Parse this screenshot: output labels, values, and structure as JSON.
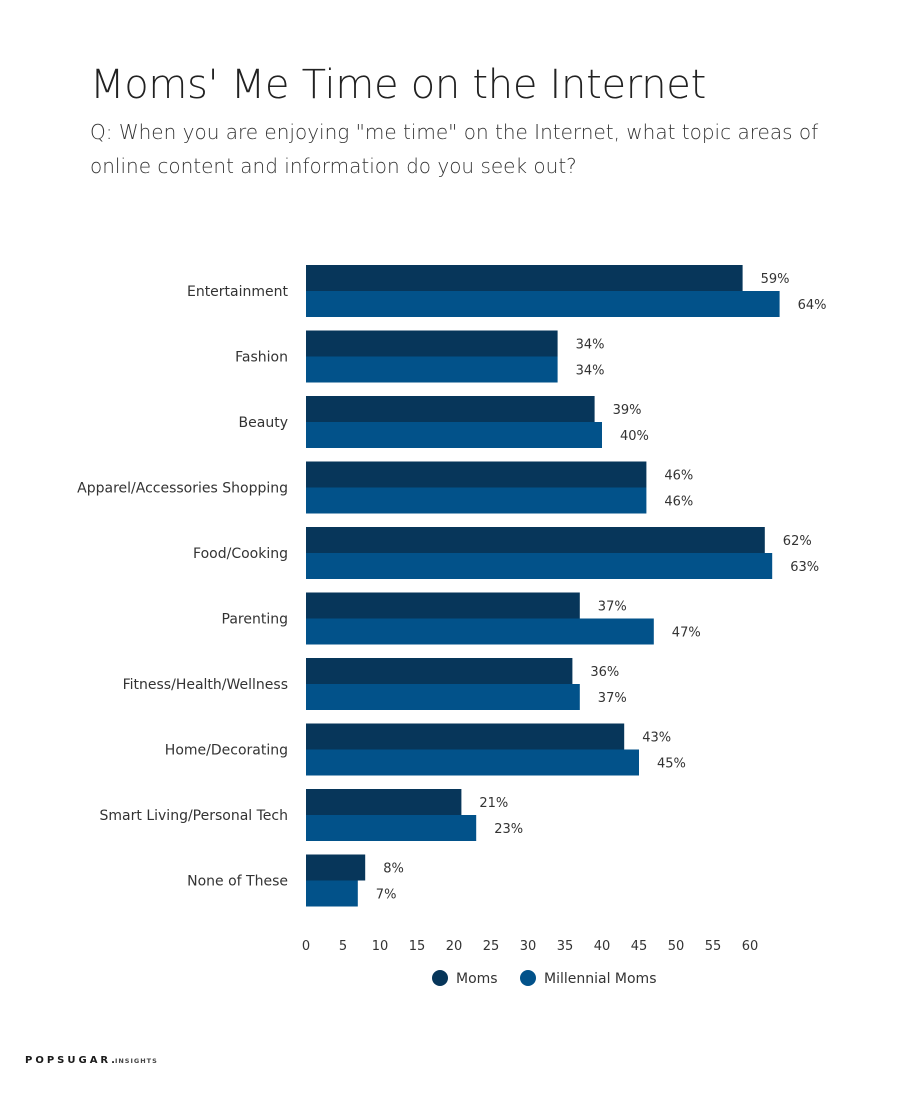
{
  "header": {
    "title": "Moms' Me Time on the Internet",
    "question": "Q: When you are enjoying \"me time\" on the Internet, what topic areas of online content and information do you seek out?"
  },
  "brand": {
    "name": "POPSUGAR",
    "dot": ".",
    "suffix": "INSIGHTS"
  },
  "chart_data": {
    "type": "bar",
    "orientation": "horizontal",
    "categories": [
      "Entertainment",
      "Fashion",
      "Beauty",
      "Apparel/Accessories Shopping",
      "Food/Cooking",
      "Parenting",
      "Fitness/Health/Wellness",
      "Home/Decorating",
      "Smart Living/Personal Tech",
      "None of These"
    ],
    "series": [
      {
        "name": "Moms",
        "color": "#07365a",
        "values": [
          59,
          34,
          39,
          46,
          62,
          37,
          36,
          43,
          21,
          8
        ]
      },
      {
        "name": "Millennial Moms",
        "color": "#02528a",
        "values": [
          64,
          34,
          40,
          46,
          63,
          47,
          37,
          45,
          23,
          7
        ]
      }
    ],
    "value_suffix": "%",
    "x_ticks": [
      0,
      5,
      10,
      15,
      20,
      25,
      30,
      35,
      40,
      45,
      50,
      55,
      60
    ],
    "xlim": [
      0,
      65
    ],
    "grid": false,
    "legend_position": "bottom"
  }
}
